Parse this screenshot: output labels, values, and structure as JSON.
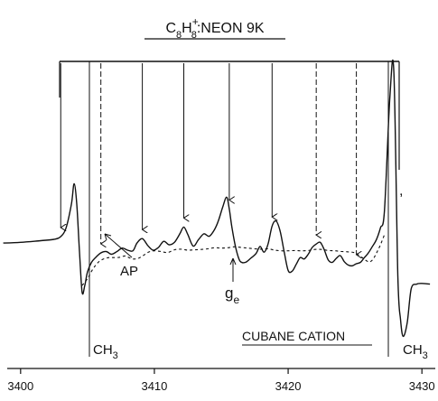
{
  "chart_data": {
    "type": "line",
    "title": {
      "c": "C",
      "sub8a": "8",
      "h": "H",
      "sup": "+",
      "sub8b": "8",
      "rest": ":NEON 9K"
    },
    "xlabel": "",
    "ylabel": "",
    "xlim": [
      3399,
      3431
    ],
    "ticks": [
      {
        "value": 3400,
        "label": "3400"
      },
      {
        "value": 3410,
        "label": "3410"
      },
      {
        "value": 3420,
        "label": "3420"
      },
      {
        "value": 3430,
        "label": "3430"
      }
    ],
    "series": [
      {
        "name": "",
        "style": "solid",
        "x": [
          3398.7,
          3400.0,
          3401.5,
          3402.5,
          3403.0,
          3403.4,
          3403.8,
          3404.0,
          3404.2,
          3404.4,
          3404.6,
          3404.8,
          3405.0,
          3405.3,
          3405.6,
          3406.0,
          3406.4,
          3406.8,
          3407.2,
          3407.6,
          3408.0,
          3408.4,
          3408.7,
          3409.1,
          3409.5,
          3409.9,
          3410.3,
          3410.7,
          3411.1,
          3411.5,
          3411.9,
          3412.2,
          3412.5,
          3412.9,
          3413.3,
          3413.7,
          3414.1,
          3414.5,
          3414.8,
          3415.1,
          3415.4,
          3415.6,
          3415.8,
          3416.1,
          3416.4,
          3416.8,
          3417.2,
          3417.6,
          3417.9,
          3418.2,
          3418.5,
          3418.8,
          3419.1,
          3419.4,
          3419.7,
          3420.0,
          3420.3,
          3420.6,
          3420.9,
          3421.2,
          3421.5,
          3421.8,
          3422.1,
          3422.4,
          3422.7,
          3423.0,
          3423.3,
          3423.6,
          3423.9,
          3424.2,
          3424.5,
          3424.8,
          3425.1,
          3425.4,
          3425.7,
          3426.0,
          3426.3,
          3426.6,
          3426.9,
          3427.2,
          3427.6,
          3427.9,
          3428.2,
          3428.4,
          3428.6,
          3428.9,
          3429.2,
          3429.6,
          3430.0,
          3430.6
        ],
        "y": [
          -5,
          -3,
          2,
          6,
          14,
          40,
          110,
          170,
          110,
          -30,
          -150,
          -130,
          -90,
          -62,
          -48,
          -34,
          -30,
          -38,
          -30,
          -20,
          -26,
          -28,
          -5,
          8,
          -12,
          -26,
          -18,
          0,
          -10,
          -3,
          22,
          42,
          20,
          -14,
          5,
          22,
          15,
          35,
          62,
          100,
          130,
          95,
          40,
          -22,
          -58,
          -62,
          -50,
          -36,
          -15,
          -32,
          -8,
          45,
          60,
          30,
          -30,
          -86,
          -88,
          -68,
          -48,
          -52,
          -38,
          -18,
          -8,
          -3,
          -25,
          -55,
          -62,
          -50,
          -42,
          -60,
          -70,
          -72,
          -66,
          -62,
          -48,
          -34,
          -15,
          5,
          40,
          90,
          420,
          500,
          -100,
          -230,
          -280,
          -240,
          -140,
          -126,
          -124,
          -126
        ]
      },
      {
        "name": "",
        "style": "dashed",
        "x": [
          3404.6,
          3405.0,
          3405.4,
          3405.8,
          3406.2,
          3406.6,
          3407.0,
          3407.4,
          3407.8,
          3408.1,
          3408.4,
          3408.8,
          3409.2,
          3409.6,
          3410.0,
          3410.5,
          3411.0,
          3411.5,
          3412.0,
          3412.5,
          3413.0,
          3413.5,
          3414.0,
          3414.5,
          3415.0,
          3415.5,
          3416.0,
          3416.5,
          3417.0,
          3417.5,
          3418.0,
          3418.5,
          3419.0,
          3419.5,
          3420.0,
          3420.5,
          3421.0,
          3421.5,
          3422.0,
          3422.5,
          3423.0,
          3423.5,
          3424.0,
          3424.5,
          3425.0,
          3425.5,
          3426.0,
          3426.3,
          3426.6,
          3426.9,
          3427.2
        ],
        "y": [
          -130,
          -110,
          -82,
          -62,
          -52,
          -48,
          -48,
          -47,
          -43,
          -48,
          -52,
          -50,
          -41,
          -31,
          -28,
          -30,
          -33,
          -25,
          -23,
          -26,
          -25,
          -24,
          -22,
          -19,
          -20,
          -19,
          -16,
          -18,
          -20,
          -22,
          -23,
          -22,
          -26,
          -28,
          -28,
          -27,
          -28,
          -27,
          -24,
          -24,
          -27,
          -28,
          -30,
          -31,
          -34,
          -47,
          -60,
          -55,
          -35,
          -10,
          20
        ]
      }
    ],
    "ylim": [
      -340,
      530
    ],
    "annotations": {
      "ap": "AP",
      "ge_g": "g",
      "ge_sub": "e",
      "ch3_left_c": "CH",
      "ch3_left_sub": "3",
      "ch3_right_c": "CH",
      "ch3_right_sub": "3",
      "cubane": "CUBANE CATION",
      "apostrophe": ","
    },
    "arrows_down_x": [
      3403.0,
      3406.0,
      3409.1,
      3412.2,
      3415.6,
      3418.8,
      3422.1,
      3425.1
    ],
    "arrows_dashed_x": [
      3406.0,
      3422.1,
      3425.1
    ]
  }
}
